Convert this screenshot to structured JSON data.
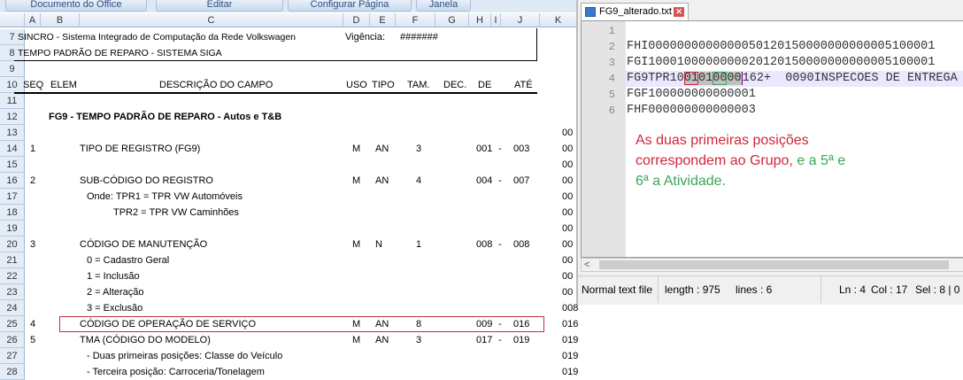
{
  "menubar": {
    "items": [
      "Documento do Office",
      "Editar",
      "Configurar Página",
      "Janela"
    ]
  },
  "columns": [
    "A",
    "B",
    "C",
    "D",
    "E",
    "F",
    "G",
    "H",
    "I",
    "J",
    "K"
  ],
  "sheet": {
    "title1": "SINCRO - Sistema Integrado de Computação da Rede Volkswagen",
    "vigencia_label": "Vigência:",
    "vigencia_value": "#######",
    "title2": "TEMPO PADRÃO DE REPARO - SISTEMA SIGA",
    "headers": {
      "seq": "SEQ",
      "elem": "ELEM",
      "desc": "DESCRIÇÃO DO CAMPO",
      "uso": "USO",
      "tipo": "TIPO",
      "tam": "TAM.",
      "dec": "DEC.",
      "de": "DE",
      "ate": "ATÉ"
    },
    "section": "FG9 - TEMPO PADRÃO DE REPARO - Autos e T&B",
    "row_numbers": [
      "7",
      "8",
      "9",
      "10",
      "11",
      "12",
      "13",
      "14",
      "15",
      "16",
      "17",
      "18",
      "19",
      "20",
      "21",
      "22",
      "23",
      "24",
      "25",
      "26",
      "27",
      "28"
    ],
    "rows": [
      {
        "r": 13,
        "k": "00"
      },
      {
        "r": 14,
        "seq": "1",
        "desc": "TIPO DE REGISTRO (FG9)",
        "uso": "M",
        "tipo": "AN",
        "tam": "3",
        "de": "001",
        "dash": "-",
        "ate": "003",
        "k": "00"
      },
      {
        "r": 15,
        "k": "00"
      },
      {
        "r": 16,
        "seq": "2",
        "desc": "SUB-CÓDIGO DO REGISTRO",
        "uso": "M",
        "tipo": "AN",
        "tam": "4",
        "de": "004",
        "dash": "-",
        "ate": "007",
        "k": "00"
      },
      {
        "r": 17,
        "sub": "Onde: TPR1 = TPR VW Automóveis",
        "k": "00"
      },
      {
        "r": 18,
        "sub2": "TPR2 = TPR VW Caminhões",
        "k": "00"
      },
      {
        "r": 19,
        "k": "00"
      },
      {
        "r": 20,
        "seq": "3",
        "desc": "CÓDIGO DE MANUTENÇÃO",
        "uso": "M",
        "tipo": "N",
        "tam": "1",
        "de": "008",
        "dash": "-",
        "ate": "008",
        "k": "00"
      },
      {
        "r": 21,
        "sub": "0 = Cadastro Geral",
        "k": "00"
      },
      {
        "r": 22,
        "sub": "1 = Inclusão",
        "k": "00"
      },
      {
        "r": 23,
        "sub": "2 = Alteração",
        "k": "00"
      },
      {
        "r": 24,
        "sub": "3 = Exclusão",
        "k": "008"
      },
      {
        "r": 25,
        "seq": "4",
        "desc": "CÓDIGO DE OPERAÇÃO DE SERVIÇO",
        "uso": "M",
        "tipo": "AN",
        "tam": "8",
        "de": "009",
        "dash": "-",
        "ate": "016",
        "k": "016",
        "highlight": true
      },
      {
        "r": 26,
        "seq": "5",
        "desc": "TMA (CÓDIGO DO MODELO)",
        "uso": "M",
        "tipo": "AN",
        "tam": "3",
        "de": "017",
        "dash": "-",
        "ate": "019",
        "k": "019"
      },
      {
        "r": 27,
        "sub": "- Duas primeiras posições: Classe do Veículo",
        "k": "019"
      },
      {
        "r": 28,
        "sub": "- Terceira posição: Carroceria/Tonelagem",
        "k": "019"
      }
    ]
  },
  "notepad": {
    "tab_title": "FG9_alterado.txt",
    "line_numbers": [
      "1",
      "2",
      "3",
      "4",
      "5",
      "6"
    ],
    "lines": {
      "l2": "FHI0000000000000050120150000000000005100001",
      "l3": "FGI1000100000000020120150000000000005100001",
      "l4_pre": "FG9TPR10",
      "l4_red": "01",
      "l4_mid": "01",
      "l4_green": "00",
      "l4_mid2": "00",
      "l4_post": "162+  0090INSPECOES DE ENTREGA .",
      "l5": "FGF100000000000001",
      "l6": "FHF000000000000003"
    },
    "note_red": "As duas primeiras posições",
    "note_red2": "correspondem ao Grupo,",
    "note_green": " e a 5ª e",
    "note_green2": "6ª a Atividade.",
    "status": {
      "type": "Normal text file",
      "length": "length : 975",
      "lines": "lines : 6",
      "ln": "Ln : 4",
      "col": "Col : 17",
      "sel": "Sel : 8 | 0"
    },
    "colors": {
      "red": "#d0263a",
      "green": "#3aa655",
      "current_line": "#e8e8ff"
    }
  }
}
